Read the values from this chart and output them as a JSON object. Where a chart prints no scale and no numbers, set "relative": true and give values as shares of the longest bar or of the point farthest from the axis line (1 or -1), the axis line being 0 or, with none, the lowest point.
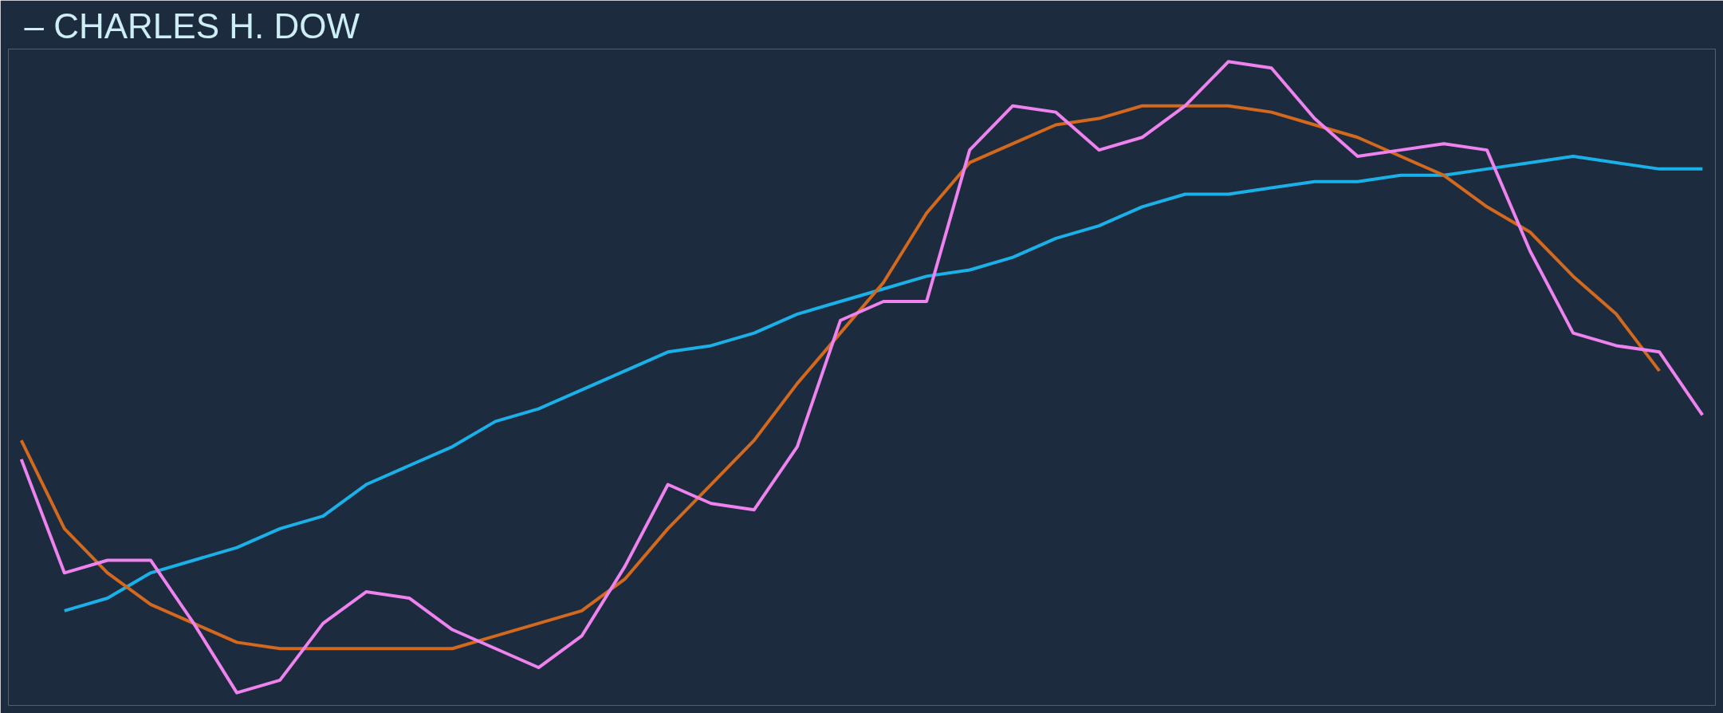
{
  "chart_data": {
    "type": "line",
    "relative": true,
    "grid": false,
    "line_style": "solid",
    "marker": "none",
    "annotations": [
      "– CHARLES H. DOW"
    ],
    "categories": [
      null,
      null,
      null,
      null,
      null,
      null,
      null,
      null,
      null,
      null,
      null,
      null,
      null,
      null,
      null,
      null,
      null,
      null,
      null,
      null,
      null,
      null,
      null,
      null,
      null,
      null,
      null,
      null,
      null,
      null,
      null,
      null,
      null,
      null,
      null,
      null,
      null,
      null,
      null,
      null
    ],
    "series": [
      {
        "color": "#1ab0e8",
        "values": [
          null,
          0.13,
          0.15,
          0.19,
          0.21,
          0.23,
          0.26,
          0.28,
          0.33,
          0.36,
          0.39,
          0.43,
          0.45,
          0.48,
          0.51,
          0.54,
          0.55,
          0.57,
          0.6,
          0.62,
          0.64,
          0.66,
          0.67,
          0.69,
          0.72,
          0.74,
          0.77,
          0.79,
          0.79,
          0.8,
          0.81,
          0.81,
          0.82,
          0.82,
          0.83,
          0.84,
          0.85,
          0.84,
          0.83,
          0.83
        ]
      },
      {
        "color": "#d2691e",
        "values": [
          0.4,
          0.26,
          0.19,
          0.14,
          0.11,
          0.08,
          0.07,
          0.07,
          0.07,
          0.07,
          0.07,
          0.09,
          0.11,
          0.13,
          0.18,
          0.26,
          0.33,
          0.4,
          0.49,
          0.57,
          0.65,
          0.76,
          0.84,
          0.87,
          0.9,
          0.91,
          0.93,
          0.93,
          0.93,
          0.92,
          0.9,
          0.88,
          0.85,
          0.82,
          0.77,
          0.73,
          0.66,
          0.6,
          0.51,
          null
        ]
      },
      {
        "color": "#ee82ee",
        "values": [
          0.37,
          0.19,
          0.21,
          0.21,
          0.11,
          0.0,
          0.02,
          0.11,
          0.16,
          0.15,
          0.1,
          0.07,
          0.04,
          0.09,
          0.2,
          0.33,
          0.3,
          0.29,
          0.39,
          0.59,
          0.62,
          0.62,
          0.86,
          0.93,
          0.92,
          0.86,
          0.88,
          0.93,
          1.0,
          0.99,
          0.91,
          0.85,
          0.86,
          0.87,
          0.86,
          0.7,
          0.57,
          0.55,
          0.54,
          0.44
        ]
      }
    ]
  }
}
